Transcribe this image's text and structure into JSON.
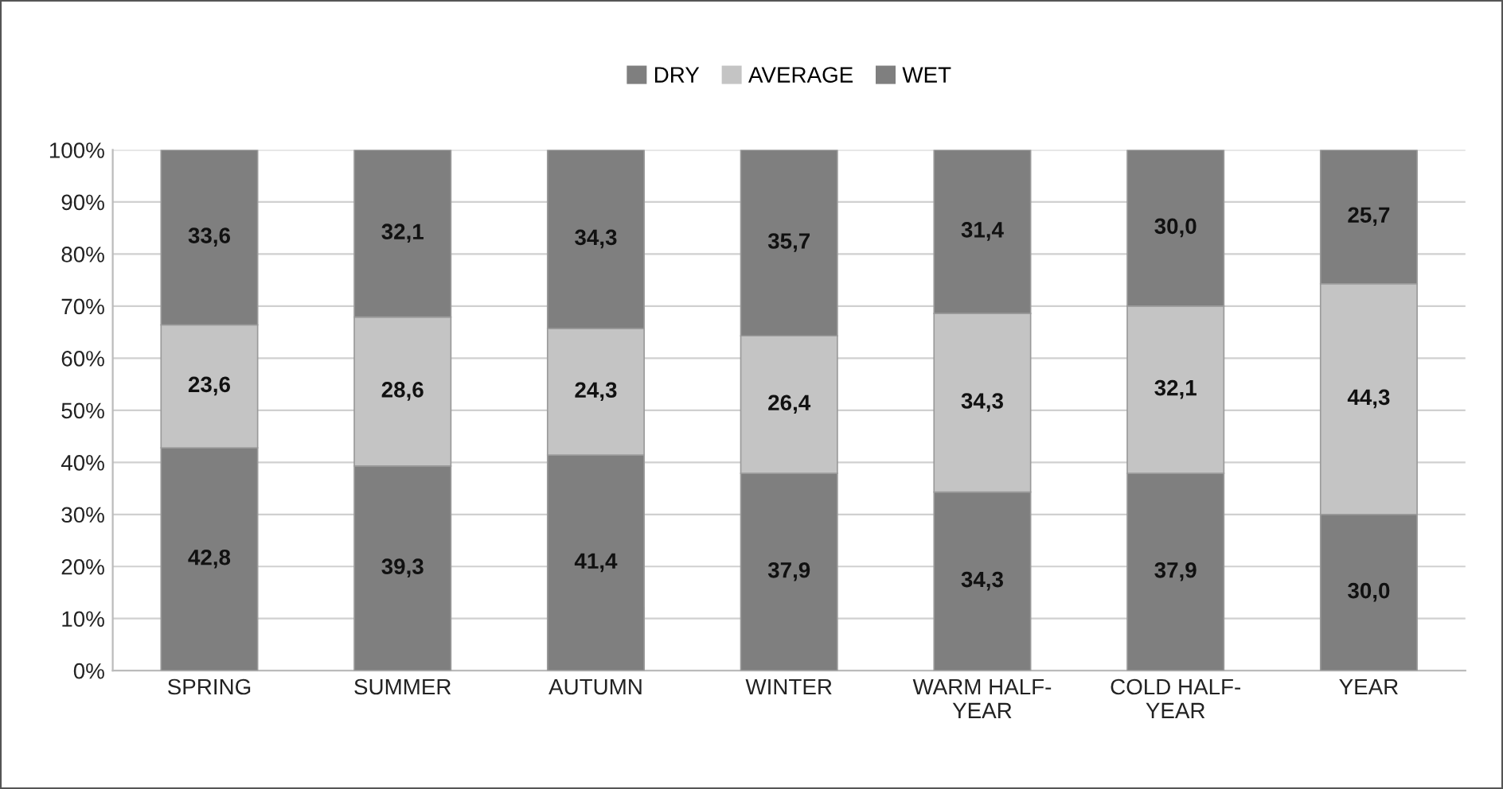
{
  "chart_data": {
    "type": "bar",
    "stacked": true,
    "categories": [
      "SPRING",
      "SUMMER",
      "AUTUMN",
      "WINTER",
      "WARM HALF-\nYEAR",
      "COLD HALF-\nYEAR",
      "YEAR"
    ],
    "series": [
      {
        "name": "DRY",
        "color": "#7f7f7f",
        "values": [
          42.8,
          39.3,
          41.4,
          37.9,
          34.3,
          37.9,
          30.0
        ],
        "value_labels": [
          "42,8",
          "39,3",
          "41,4",
          "37,9",
          "34,3",
          "37,9",
          "30,0"
        ]
      },
      {
        "name": "AVERAGE",
        "color": "#c4c4c4",
        "values": [
          23.6,
          28.6,
          24.3,
          26.4,
          34.3,
          32.1,
          44.3
        ],
        "value_labels": [
          "23,6",
          "28,6",
          "24,3",
          "26,4",
          "34,3",
          "32,1",
          "44,3"
        ]
      },
      {
        "name": "WET",
        "color": "#7f7f7f",
        "values": [
          33.6,
          32.1,
          34.3,
          35.7,
          31.4,
          30.0,
          25.7
        ],
        "value_labels": [
          "33,6",
          "32,1",
          "34,3",
          "35,7",
          "31,4",
          "30,0",
          "25,7"
        ]
      }
    ],
    "ylim": [
      0,
      100
    ],
    "yticks": [
      {
        "value": 0,
        "label": "0%"
      },
      {
        "value": 10,
        "label": "10%"
      },
      {
        "value": 20,
        "label": "20%"
      },
      {
        "value": 30,
        "label": "30%"
      },
      {
        "value": 40,
        "label": "40%"
      },
      {
        "value": 50,
        "label": "50%"
      },
      {
        "value": 60,
        "label": "60%"
      },
      {
        "value": 70,
        "label": "70%"
      },
      {
        "value": 80,
        "label": "80%"
      },
      {
        "value": 90,
        "label": "90%"
      },
      {
        "value": 100,
        "label": "100%"
      }
    ],
    "grid": "y",
    "legend": "top"
  }
}
